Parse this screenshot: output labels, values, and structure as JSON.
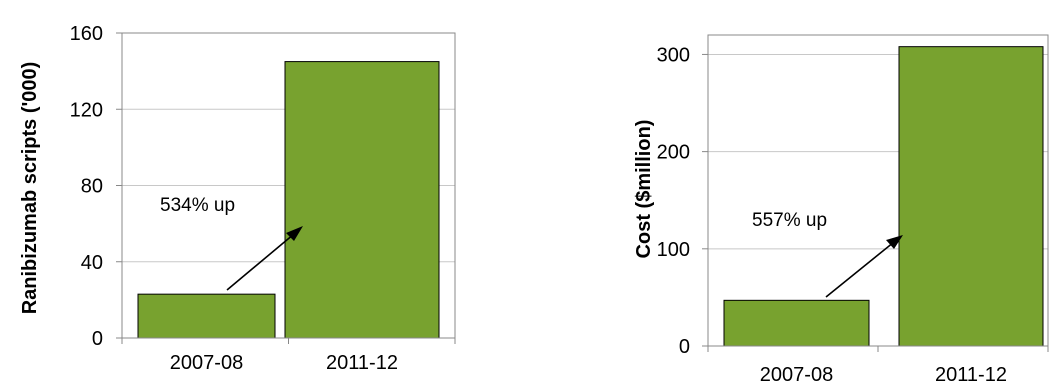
{
  "chart_data": [
    {
      "type": "bar",
      "categories": [
        "2007-08",
        "2011-12"
      ],
      "values": [
        23,
        145
      ],
      "ylabel": "Ranibizumab scripts ('000)",
      "ylim": [
        0,
        160
      ],
      "yticks": [
        0,
        40,
        80,
        120,
        160
      ],
      "ytick_labels": [
        "0",
        "40",
        "80",
        "120",
        "160"
      ],
      "annotation": "534% up",
      "bar_color": "#78a22f",
      "grid": true
    },
    {
      "type": "bar",
      "categories": [
        "2007-08",
        "2011-12"
      ],
      "values": [
        47,
        308
      ],
      "ylabel": "Cost ($million)",
      "ylim": [
        0,
        320
      ],
      "yticks": [
        0,
        100,
        200,
        300
      ],
      "ytick_labels": [
        "0",
        "100",
        "200",
        "300"
      ],
      "annotation": "557% up",
      "bar_color": "#78a22f",
      "grid": true
    }
  ]
}
